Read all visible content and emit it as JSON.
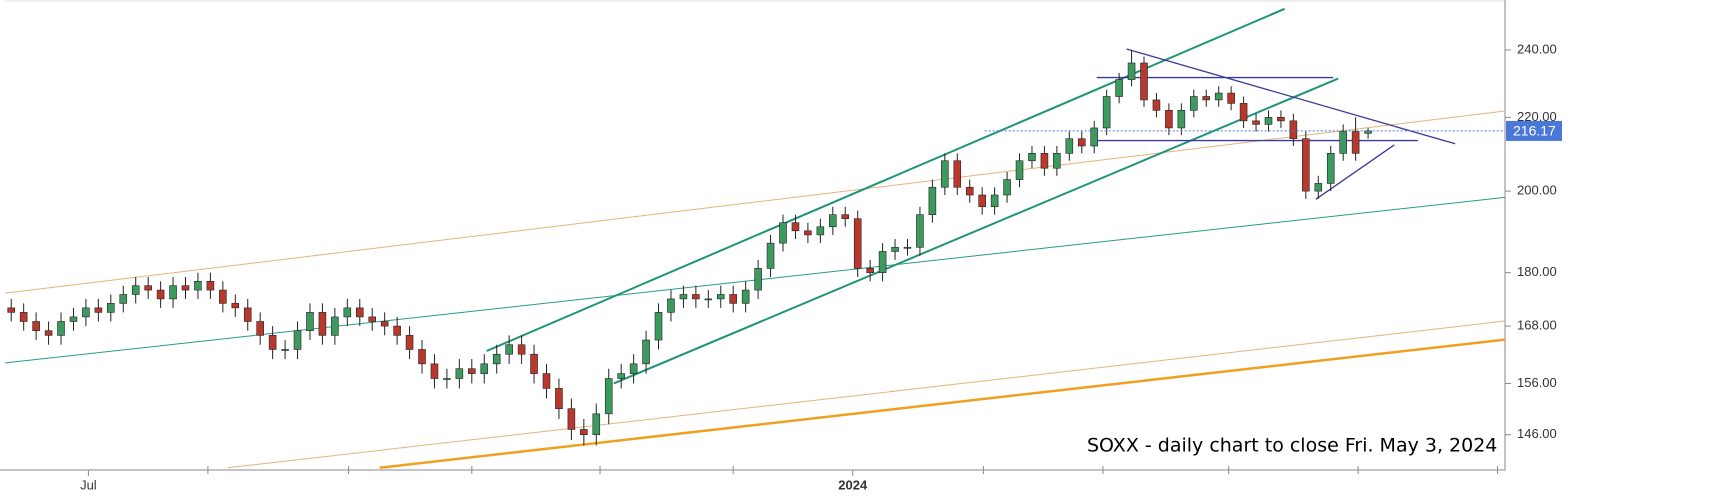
{
  "chart_data": {
    "type": "candlestick",
    "annotation": "SOXX - daily chart to close Fri. May 3, 2024",
    "log_scale": true,
    "xlim": [
      -0.5,
      120
    ],
    "ylim": [
      139.5,
      256
    ],
    "yticks": [
      {
        "value": 146,
        "label": "146.00"
      },
      {
        "value": 156,
        "label": "156.00"
      },
      {
        "value": 168,
        "label": "168.00"
      },
      {
        "value": 180,
        "label": "180.00"
      },
      {
        "value": 200,
        "label": "200.00"
      },
      {
        "value": 220,
        "label": "220.00"
      },
      {
        "value": 240,
        "label": "240.00"
      }
    ],
    "xticks": [
      {
        "value": 6.2,
        "label": "Jul"
      },
      {
        "value": 67.6,
        "label": "2024"
      }
    ],
    "xminorticks": [
      15.8,
      27.1,
      37.0,
      47.3,
      58.0,
      78.1,
      87.7,
      97.8,
      108.2,
      119.4
    ],
    "up_color": "#3d9a5e",
    "down_color": "#b8382d",
    "last_price": {
      "value": 216.17,
      "label": "216.17",
      "color": "#4a78d8"
    },
    "open": [
      172,
      171,
      169,
      167,
      166,
      169,
      170,
      172,
      171,
      173,
      175,
      177,
      176,
      174,
      177,
      176,
      178,
      176,
      173,
      172,
      169,
      166,
      163,
      163,
      167,
      171,
      166,
      170,
      172,
      170,
      169,
      168,
      166,
      163,
      160,
      157,
      157,
      159,
      158,
      160,
      162,
      164,
      162,
      158,
      155,
      151,
      147,
      146,
      150,
      157,
      158,
      160,
      165,
      171,
      174,
      175,
      174,
      174,
      175,
      173,
      176,
      181,
      187,
      192,
      190,
      189,
      191,
      194,
      193,
      181,
      180,
      185,
      186,
      186,
      194,
      201,
      208,
      201,
      199,
      196,
      199,
      203,
      208,
      210,
      206,
      210,
      214,
      212,
      217,
      226,
      231,
      236,
      225,
      222,
      217,
      222,
      226,
      225,
      227,
      224,
      219,
      218,
      220,
      219,
      214,
      200,
      202,
      210,
      216,
      215.5
    ],
    "high": [
      174,
      173,
      171,
      169,
      171,
      172,
      174,
      174,
      175,
      177,
      179,
      179,
      178,
      179,
      179,
      180,
      180,
      178,
      175,
      174,
      171,
      168,
      165,
      169,
      173,
      173,
      172,
      174,
      174,
      172,
      171,
      170,
      168,
      165,
      162,
      159,
      161,
      161,
      162,
      164,
      166,
      166,
      164,
      160,
      157,
      153,
      149,
      152,
      159,
      160,
      162,
      167,
      173,
      176,
      177,
      177,
      176,
      177,
      177,
      178,
      183,
      189,
      194,
      194,
      192,
      193,
      196,
      196,
      195,
      183,
      187,
      188,
      188,
      196,
      203,
      210,
      210,
      203,
      201,
      201,
      205,
      210,
      212,
      212,
      212,
      216,
      216,
      219,
      228,
      233,
      240,
      238,
      227,
      224,
      224,
      228,
      228,
      229,
      229,
      226,
      221,
      222,
      222,
      221,
      216,
      204,
      212,
      218,
      220,
      217
    ],
    "low": [
      169,
      167,
      165,
      164,
      164,
      167,
      168,
      169,
      169,
      171,
      173,
      174,
      172,
      172,
      174,
      174,
      174,
      171,
      170,
      167,
      164,
      161,
      161,
      161,
      165,
      164,
      164,
      168,
      168,
      167,
      166,
      164,
      161,
      158,
      155,
      155,
      155,
      156,
      156,
      158,
      160,
      160,
      156,
      153,
      149,
      145,
      144,
      144,
      148,
      155,
      156,
      158,
      163,
      169,
      172,
      172,
      172,
      172,
      171,
      171,
      174,
      179,
      185,
      188,
      187,
      187,
      189,
      191,
      179,
      178,
      178,
      183,
      184,
      184,
      192,
      199,
      199,
      197,
      194,
      194,
      197,
      201,
      206,
      204,
      204,
      208,
      210,
      210,
      215,
      224,
      229,
      223,
      220,
      215,
      215,
      220,
      223,
      223,
      222,
      217,
      216,
      216,
      217,
      212,
      198,
      198,
      200,
      208,
      208,
      214
    ],
    "close": [
      171,
      169,
      167,
      166,
      169,
      170,
      172,
      171,
      173,
      175,
      177,
      176,
      174,
      177,
      176,
      178,
      176,
      173,
      172,
      169,
      166,
      163,
      163,
      167,
      171,
      166,
      170,
      172,
      170,
      169,
      168,
      166,
      163,
      160,
      157,
      157,
      159,
      158,
      160,
      162,
      164,
      162,
      158,
      155,
      151,
      147,
      146,
      150,
      157,
      158,
      160,
      165,
      171,
      174,
      175,
      174,
      174,
      175,
      173,
      176,
      181,
      187,
      192,
      190,
      189,
      191,
      194,
      193,
      181,
      180,
      185,
      186,
      186,
      194,
      201,
      208,
      201,
      199,
      196,
      199,
      203,
      208,
      210,
      206,
      210,
      214,
      212,
      217,
      226,
      231,
      236,
      225,
      222,
      217,
      222,
      226,
      225,
      227,
      224,
      219,
      218,
      220,
      219,
      214,
      200,
      202,
      210,
      216,
      210,
      216.17
    ],
    "trendlines": [
      {
        "color": "#e8b27a",
        "width": 1,
        "x": [
          -0.48,
          120
        ],
        "y": [
          175.3,
          221.8
        ]
      },
      {
        "color": "#2a9a8a",
        "width": 1,
        "x": [
          -0.48,
          120
        ],
        "y": [
          160.2,
          198.4
        ]
      },
      {
        "color": "#e8b27a",
        "width": 1,
        "x": [
          17.4,
          120
        ],
        "y": [
          139.9,
          169.1
        ]
      },
      {
        "color": "#f0a020",
        "width": 2.5,
        "x": [
          29.6,
          120
        ],
        "y": [
          139.9,
          165.1
        ]
      },
      {
        "color": "#1f9478",
        "width": 2,
        "x": [
          38.2,
          102.3
        ],
        "y": [
          162.7,
          253.1
        ]
      },
      {
        "color": "#1f9478",
        "width": 2,
        "x": [
          48.4,
          106.6
        ],
        "y": [
          156,
          231.3
        ]
      },
      {
        "color": "#3a3a9a",
        "width": 1.3,
        "x": [
          89.6,
          116
        ],
        "y": [
          240.3,
          212.6
        ]
      },
      {
        "color": "#3a3a9a",
        "width": 1.3,
        "x": [
          87.2,
          106.2
        ],
        "y": [
          231.6,
          231.6
        ]
      },
      {
        "color": "#3a3a9a",
        "width": 1.3,
        "x": [
          86.7,
          113
        ],
        "y": [
          213.5,
          213.5
        ]
      },
      {
        "color": "#3a3a9a",
        "width": 1.3,
        "x": [
          104.8,
          111.1
        ],
        "y": [
          197.9,
          212.3
        ]
      }
    ],
    "last_price_line_start": 78.2
  }
}
